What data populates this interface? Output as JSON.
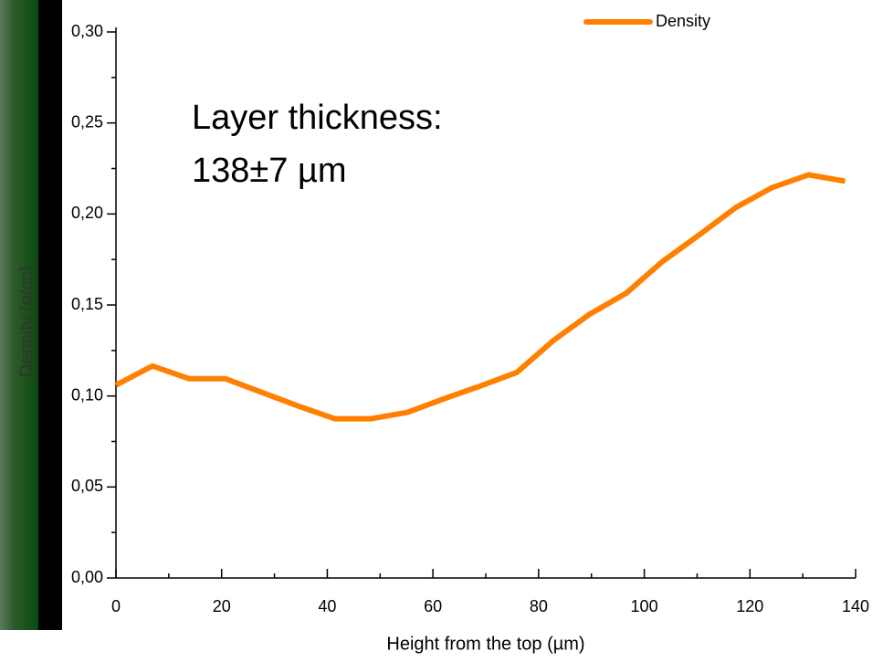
{
  "chart_data": {
    "type": "line",
    "annotation": [
      "Layer thickness:",
      "138±7 µm"
    ],
    "xlabel": "Height from the top (µm)",
    "ylabel": "Density (g/cc)",
    "x": [
      0,
      6.9,
      13.8,
      20.7,
      27.6,
      34.5,
      41.4,
      48.3,
      55.2,
      62.1,
      69,
      75.9,
      82.8,
      89.7,
      96.6,
      103.5,
      110.4,
      117.3,
      124.2,
      131.1,
      138
    ],
    "series": [
      {
        "name": "Density",
        "color": "#ff8000",
        "values": [
          0.106,
          0.1165,
          0.1095,
          0.1095,
          0.102,
          0.0945,
          0.0875,
          0.0875,
          0.091,
          0.0985,
          0.1055,
          0.113,
          0.1305,
          0.145,
          0.1565,
          0.174,
          0.1885,
          0.2035,
          0.2145,
          0.2215,
          0.218
        ]
      }
    ],
    "xlim": [
      0,
      140
    ],
    "xticks": [
      0,
      20,
      40,
      60,
      80,
      100,
      120,
      140
    ],
    "xminorticks": [
      10,
      30,
      50,
      70,
      90,
      110,
      130
    ],
    "ylim": [
      0,
      0.3
    ],
    "yticks": [
      {
        "value": 0,
        "label": "0,00"
      },
      {
        "value": 0.05,
        "label": "0,05"
      },
      {
        "value": 0.1,
        "label": "0,10"
      },
      {
        "value": 0.15,
        "label": "0,15"
      },
      {
        "value": 0.2,
        "label": "0,20"
      },
      {
        "value": 0.25,
        "label": "0,25"
      },
      {
        "value": 0.3,
        "label": "0,30"
      }
    ],
    "yminorticks": [
      0.025,
      0.075,
      0.125,
      0.175,
      0.225,
      0.275
    ],
    "legend": "upper right",
    "grid": false
  }
}
